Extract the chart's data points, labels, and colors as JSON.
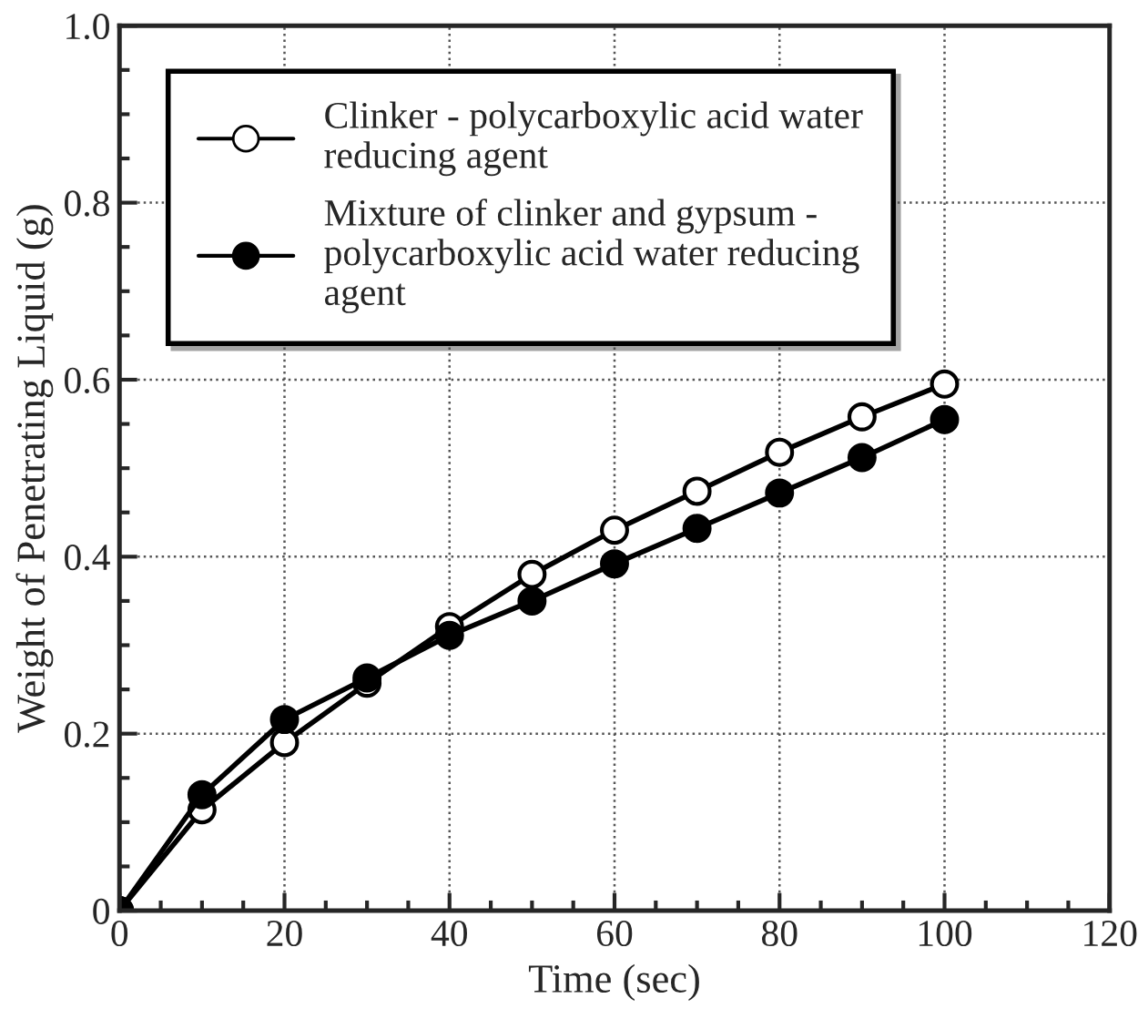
{
  "chart_data": {
    "type": "line",
    "xlabel": "Time (sec)",
    "ylabel": "Weight of Penetrating Liquid (g)",
    "x": [
      0,
      10,
      20,
      30,
      40,
      50,
      60,
      70,
      80,
      90,
      100
    ],
    "series": [
      {
        "name": "Clinker - polycarboxylic acid water reducing agent",
        "color": "#000000",
        "marker": "circle",
        "values": [
          0,
          0.114,
          0.19,
          0.257,
          0.321,
          0.38,
          0.43,
          0.474,
          0.518,
          0.558,
          0.595
        ]
      },
      {
        "name": "Mixture of clinker and gypsum - polycarboxylic acid water reducing agent",
        "color": "#000000",
        "marker": "circle",
        "values": [
          0,
          0.131,
          0.216,
          0.263,
          0.311,
          0.35,
          0.392,
          0.432,
          0.472,
          0.512,
          0.555
        ]
      }
    ],
    "xlim": [
      0,
      120
    ],
    "xticks": [
      0,
      20,
      40,
      60,
      80,
      100,
      120
    ],
    "ylim": [
      0,
      1.0
    ],
    "yticks": [
      {
        "value": 0,
        "label": "0"
      },
      0.2,
      0.4,
      0.6,
      0.8,
      {
        "value": 1.0,
        "label": "1.0"
      }
    ],
    "grid": true,
    "legend": "top left",
    "line_style": "solid"
  }
}
